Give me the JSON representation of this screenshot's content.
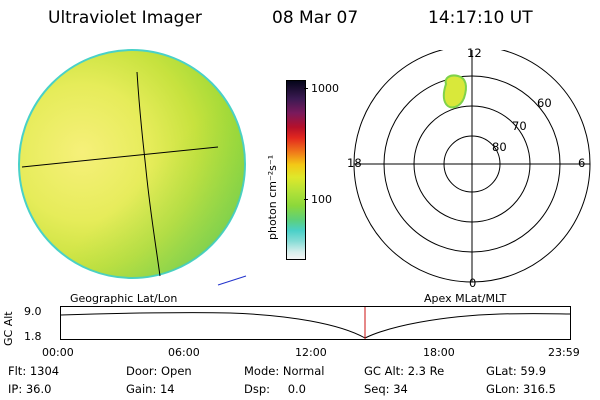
{
  "header": {
    "instrument": "Ultraviolet Imager",
    "date": "08 Mar 07",
    "time": "14:17:10 UT"
  },
  "colorbar": {
    "unit_label": "photon cm⁻²s⁻¹",
    "ticks": [
      "1000",
      "100"
    ]
  },
  "polar_plot": {
    "mlt_labels": {
      "top": "12",
      "left": "18",
      "right": "6",
      "bottom": "0"
    },
    "lat_labels": [
      "60",
      "70",
      "80"
    ]
  },
  "footer": {
    "left_caption": "Geographic Lat/Lon",
    "right_caption": "Apex MLat/MLT"
  },
  "altitude_plot": {
    "axis_title": "GC Alt",
    "y_ticks": [
      "9.0",
      "1.8"
    ],
    "x_ticks": [
      "00:00",
      "06:00",
      "12:00",
      "18:00",
      "23:59"
    ],
    "marker_time": "14:17"
  },
  "status": {
    "flt": {
      "label": "Flt:",
      "value": "1304"
    },
    "ip": {
      "label": "IP:",
      "value": "36.0"
    },
    "door": {
      "label": "Door:",
      "value": "Open"
    },
    "gain": {
      "label": "Gain:",
      "value": "14"
    },
    "mode": {
      "label": "Mode:",
      "value": "Normal"
    },
    "dsp": {
      "label": "Dsp:",
      "value": "0.0"
    },
    "gcalt": {
      "label": "GC Alt:",
      "value": "2.3 Re"
    },
    "seq": {
      "label": "Seq:",
      "value": "34"
    },
    "glat": {
      "label": "GLat:",
      "value": "59.9"
    },
    "glon": {
      "label": "GLon:",
      "value": "316.5"
    }
  }
}
